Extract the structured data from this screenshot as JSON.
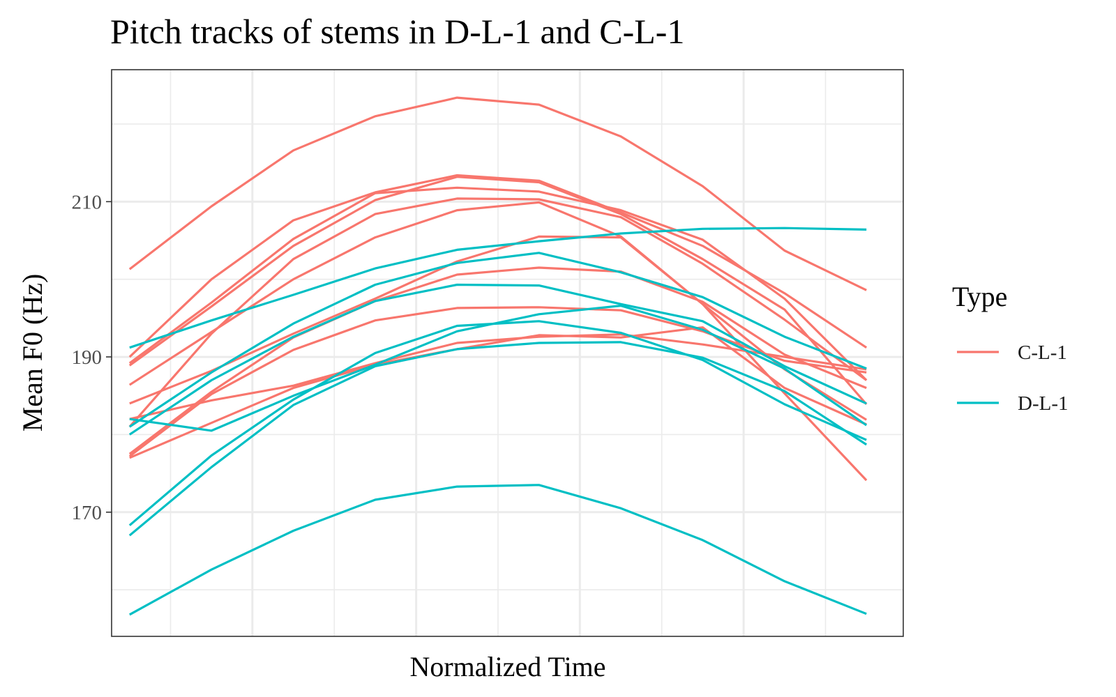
{
  "chart_data": {
    "type": "line",
    "title": "Pitch tracks of stems in D-L-1 and C-L-1",
    "xlabel": "Normalized Time",
    "ylabel": "Mean F0 (Hz)",
    "x": [
      1,
      2,
      3,
      4,
      5,
      6,
      7,
      8,
      9,
      10
    ],
    "xlim": [
      0.78,
      10.45
    ],
    "ylim": [
      154,
      227
    ],
    "yticks": [
      170,
      190,
      210
    ],
    "grid": true,
    "legend": {
      "title": "Type",
      "position": "right",
      "entries": [
        {
          "label": "C-L-1",
          "color": "#F8766D"
        },
        {
          "label": "D-L-1",
          "color": "#00BFC4"
        }
      ]
    },
    "series": [
      {
        "group": "C-L-1",
        "color": "#F8766D",
        "values": [
          201.3,
          209.4,
          216.6,
          221.0,
          223.4,
          222.5,
          218.4,
          212.0,
          203.7,
          198.6
        ]
      },
      {
        "group": "C-L-1",
        "color": "#F8766D",
        "values": [
          190.0,
          200.0,
          207.6,
          211.2,
          213.4,
          212.7,
          208.6,
          204.3,
          198.2,
          191.2
        ]
      },
      {
        "group": "C-L-1",
        "color": "#F8766D",
        "values": [
          189.2,
          197.0,
          205.2,
          211.1,
          211.8,
          211.3,
          208.9,
          205.1,
          197.5,
          187.0
        ]
      },
      {
        "group": "C-L-1",
        "color": "#F8766D",
        "values": [
          188.9,
          196.5,
          204.3,
          210.2,
          213.2,
          212.5,
          208.4,
          202.6,
          196.1,
          183.9
        ]
      },
      {
        "group": "C-L-1",
        "color": "#F8766D",
        "values": [
          181.0,
          193.0,
          202.6,
          208.4,
          210.4,
          210.3,
          208.0,
          202.0,
          194.8,
          187.0
        ]
      },
      {
        "group": "C-L-1",
        "color": "#F8766D",
        "values": [
          186.4,
          193.2,
          200.0,
          205.4,
          208.9,
          209.9,
          205.5,
          196.8,
          185.3,
          174.1
        ]
      },
      {
        "group": "C-L-1",
        "color": "#F8766D",
        "values": [
          184.0,
          188.2,
          193.0,
          197.5,
          202.3,
          205.5,
          205.4,
          196.8,
          188.4,
          181.9
        ]
      },
      {
        "group": "C-L-1",
        "color": "#F8766D",
        "values": [
          177.5,
          185.5,
          192.5,
          197.2,
          200.6,
          201.5,
          201.0,
          197.1,
          190.3,
          186.0
        ]
      },
      {
        "group": "C-L-1",
        "color": "#F8766D",
        "values": [
          177.2,
          185.2,
          190.9,
          194.7,
          196.3,
          196.4,
          196.0,
          193.3,
          189.5,
          188.0
        ]
      },
      {
        "group": "C-L-1",
        "color": "#F8766D",
        "values": [
          182.0,
          184.4,
          186.3,
          189.2,
          191.8,
          192.6,
          192.9,
          191.6,
          190.0,
          188.4
        ]
      },
      {
        "group": "C-L-1",
        "color": "#F8766D",
        "values": [
          177.0,
          181.5,
          186.0,
          189.0,
          191.0,
          192.8,
          192.5,
          193.8,
          186.0,
          181.3
        ]
      },
      {
        "group": "D-L-1",
        "color": "#00BFC4",
        "values": [
          191.2,
          194.7,
          198.0,
          201.4,
          203.8,
          204.9,
          205.9,
          206.5,
          206.6,
          206.4
        ]
      },
      {
        "group": "D-L-1",
        "color": "#00BFC4",
        "values": [
          181.0,
          188.0,
          194.3,
          199.3,
          202.1,
          203.4,
          200.9,
          197.7,
          192.6,
          188.5
        ]
      },
      {
        "group": "D-L-1",
        "color": "#00BFC4",
        "values": [
          180.0,
          187.0,
          192.6,
          197.2,
          199.3,
          199.2,
          196.8,
          194.6,
          188.8,
          184.0
        ]
      },
      {
        "group": "D-L-1",
        "color": "#00BFC4",
        "values": [
          168.3,
          177.3,
          184.5,
          190.5,
          194.0,
          194.6,
          193.1,
          189.6,
          183.9,
          179.3
        ]
      },
      {
        "group": "D-L-1",
        "color": "#00BFC4",
        "values": [
          167.0,
          175.8,
          183.8,
          188.8,
          191.0,
          191.8,
          191.9,
          189.9,
          185.6,
          178.7
        ]
      },
      {
        "group": "D-L-1",
        "color": "#00BFC4",
        "values": [
          182.0,
          180.5,
          185.0,
          189.0,
          193.3,
          195.5,
          196.6,
          193.5,
          188.5,
          181.2
        ]
      },
      {
        "group": "D-L-1",
        "color": "#00BFC4",
        "values": [
          156.8,
          162.6,
          167.6,
          171.6,
          173.3,
          173.5,
          170.5,
          166.4,
          161.1,
          156.9
        ]
      }
    ]
  }
}
